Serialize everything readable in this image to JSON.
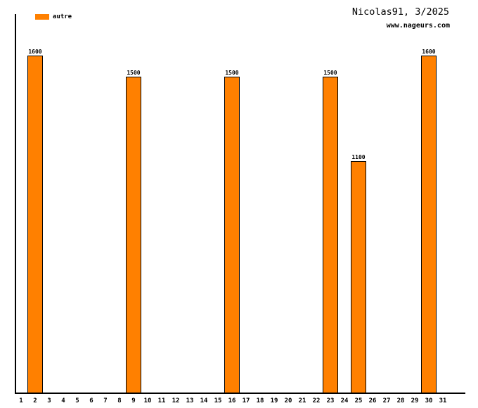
{
  "header": {
    "title": "Nicolas91, 3/2025",
    "subtitle": "www.nageurs.com"
  },
  "legend": {
    "label": "autre",
    "position": "top-left"
  },
  "colors": {
    "bar_fill": "#FF8000",
    "bar_border": "#000000",
    "axis": "#000000",
    "background": "#FFFFFF",
    "text": "#000000"
  },
  "chart_data": {
    "type": "bar",
    "title": "Nicolas91, 3/2025",
    "xlabel": "",
    "ylabel": "",
    "categories": [
      "1",
      "2",
      "3",
      "4",
      "5",
      "6",
      "7",
      "8",
      "9",
      "10",
      "11",
      "12",
      "13",
      "14",
      "15",
      "16",
      "17",
      "18",
      "19",
      "20",
      "21",
      "22",
      "23",
      "24",
      "25",
      "26",
      "27",
      "28",
      "29",
      "30",
      "31"
    ],
    "series": [
      {
        "name": "autre",
        "values": [
          0,
          1600,
          0,
          0,
          0,
          0,
          0,
          0,
          1500,
          0,
          0,
          0,
          0,
          0,
          0,
          1500,
          0,
          0,
          0,
          0,
          0,
          0,
          1500,
          0,
          1100,
          0,
          0,
          0,
          0,
          1600,
          0
        ]
      }
    ],
    "data_labels": true,
    "ylim": [
      0,
      1800
    ],
    "grid": false,
    "legend_position": "top-left"
  }
}
